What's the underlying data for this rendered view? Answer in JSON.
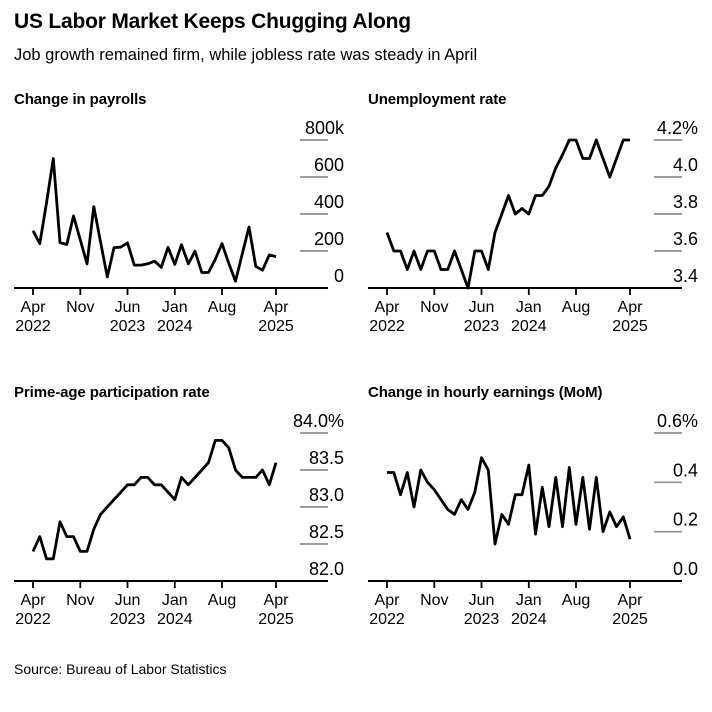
{
  "header": {
    "title": "US Labor Market Keeps Chugging Along",
    "subtitle": "Job growth remained firm, while jobless rate was steady in April"
  },
  "footer": {
    "source": "Source: Bureau of Labor Statistics"
  },
  "colors": {
    "background": "#ffffff",
    "text": "#000000",
    "line": "#000000",
    "axis": "#000000",
    "gridline": "#8f8f8f"
  },
  "x_axis": {
    "frequency": "monthly",
    "start": "Apr 2022",
    "end": "Apr 2025",
    "ticks": [
      {
        "index": 0,
        "month": "Apr",
        "year": "2022"
      },
      {
        "index": 7,
        "month": "Nov",
        "year": ""
      },
      {
        "index": 14,
        "month": "Jun",
        "year": "2023"
      },
      {
        "index": 21,
        "month": "Jan",
        "year": "2024"
      },
      {
        "index": 28,
        "month": "Aug",
        "year": ""
      },
      {
        "index": 36,
        "month": "Apr",
        "year": "2025"
      }
    ],
    "months": [
      "Apr 2022",
      "May 2022",
      "Jun 2022",
      "Jul 2022",
      "Aug 2022",
      "Sep 2022",
      "Oct 2022",
      "Nov 2022",
      "Dec 2022",
      "Jan 2023",
      "Feb 2023",
      "Mar 2023",
      "Apr 2023",
      "May 2023",
      "Jun 2023",
      "Jul 2023",
      "Aug 2023",
      "Sep 2023",
      "Oct 2023",
      "Nov 2023",
      "Dec 2023",
      "Jan 2024",
      "Feb 2024",
      "Mar 2024",
      "Apr 2024",
      "May 2024",
      "Jun 2024",
      "Jul 2024",
      "Aug 2024",
      "Sep 2024",
      "Oct 2024",
      "Nov 2024",
      "Dec 2024",
      "Jan 2025",
      "Feb 2025",
      "Mar 2025",
      "Apr 2025"
    ]
  },
  "chart_data": [
    {
      "id": "payrolls",
      "type": "line",
      "title": "Change in payrolls",
      "unit": "thousands of jobs",
      "ylim": [
        0,
        800
      ],
      "y_ticks": [
        {
          "value": 800,
          "label": "800k"
        },
        {
          "value": 600,
          "label": "600"
        },
        {
          "value": 400,
          "label": "400"
        },
        {
          "value": 200,
          "label": "200"
        },
        {
          "value": 0,
          "label": "0"
        }
      ],
      "values": [
        310,
        240,
        460,
        700,
        245,
        235,
        390,
        260,
        130,
        440,
        250,
        60,
        218,
        221,
        244,
        124,
        124,
        131,
        145,
        112,
        220,
        128,
        234,
        131,
        199,
        84,
        84,
        155,
        240,
        133,
        37,
        185,
        330,
        117,
        96,
        179,
        170
      ]
    },
    {
      "id": "unemployment",
      "type": "line",
      "title": "Unemployment rate",
      "unit": "percent",
      "ylim": [
        3.4,
        4.2
      ],
      "y_ticks": [
        {
          "value": 4.2,
          "label": "4.2%"
        },
        {
          "value": 4.0,
          "label": "4.0"
        },
        {
          "value": 3.8,
          "label": "3.8"
        },
        {
          "value": 3.6,
          "label": "3.6"
        },
        {
          "value": 3.4,
          "label": "3.4"
        }
      ],
      "values": [
        3.7,
        3.6,
        3.6,
        3.5,
        3.6,
        3.5,
        3.6,
        3.6,
        3.5,
        3.5,
        3.6,
        3.5,
        3.4,
        3.6,
        3.6,
        3.5,
        3.7,
        3.8,
        3.9,
        3.8,
        3.83,
        3.8,
        3.9,
        3.9,
        3.95,
        4.05,
        4.12,
        4.2,
        4.2,
        4.1,
        4.1,
        4.2,
        4.1,
        4.0,
        4.1,
        4.2,
        4.2
      ]
    },
    {
      "id": "participation",
      "type": "line",
      "title": "Prime-age participation rate",
      "unit": "percent",
      "ylim": [
        82.0,
        84.0
      ],
      "y_ticks": [
        {
          "value": 84.0,
          "label": "84.0%"
        },
        {
          "value": 83.5,
          "label": "83.5"
        },
        {
          "value": 83.0,
          "label": "83.0"
        },
        {
          "value": 82.5,
          "label": "82.5"
        },
        {
          "value": 82.0,
          "label": "82.0"
        }
      ],
      "values": [
        82.4,
        82.6,
        82.3,
        82.3,
        82.8,
        82.6,
        82.6,
        82.4,
        82.4,
        82.7,
        82.9,
        83.0,
        83.1,
        83.2,
        83.3,
        83.3,
        83.4,
        83.4,
        83.3,
        83.3,
        83.2,
        83.1,
        83.4,
        83.3,
        83.4,
        83.5,
        83.6,
        83.9,
        83.9,
        83.8,
        83.5,
        83.4,
        83.4,
        83.4,
        83.5,
        83.3,
        83.6
      ]
    },
    {
      "id": "earnings",
      "type": "line",
      "title": "Change in hourly earnings (MoM)",
      "unit": "percent",
      "ylim": [
        0.0,
        0.6
      ],
      "y_ticks": [
        {
          "value": 0.6,
          "label": "0.6%"
        },
        {
          "value": 0.4,
          "label": "0.4"
        },
        {
          "value": 0.2,
          "label": "0.2"
        },
        {
          "value": 0.0,
          "label": "0.0"
        }
      ],
      "values": [
        0.44,
        0.44,
        0.35,
        0.44,
        0.3,
        0.45,
        0.4,
        0.37,
        0.33,
        0.29,
        0.27,
        0.33,
        0.29,
        0.36,
        0.5,
        0.45,
        0.15,
        0.27,
        0.23,
        0.35,
        0.35,
        0.47,
        0.19,
        0.38,
        0.22,
        0.42,
        0.22,
        0.46,
        0.23,
        0.42,
        0.21,
        0.42,
        0.2,
        0.28,
        0.22,
        0.26,
        0.17
      ]
    }
  ]
}
